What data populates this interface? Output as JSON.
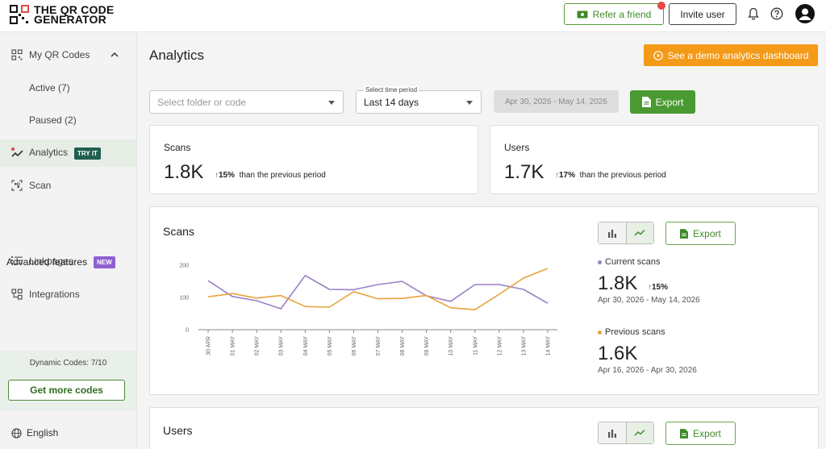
{
  "logo": {
    "line1": "THE QR CODE",
    "line2": "GENERATOR"
  },
  "header": {
    "refer_label": "Refer a friend",
    "invite_label": "Invite user"
  },
  "sidebar": {
    "my_qr_codes": "My QR Codes",
    "active": "Active (7)",
    "paused": "Paused (2)",
    "analytics": "Analytics",
    "analytics_badge": "TRY IT",
    "scan": "Scan",
    "advanced": "Advanced features",
    "advanced_badge": "NEW",
    "linkpages": "Linkpages",
    "integrations": "Integrations",
    "dynamic_codes": "Dynamic Codes: 7/10",
    "get_more": "Get more codes",
    "language": "English"
  },
  "main": {
    "title": "Analytics",
    "demo_button": "See a demo analytics dashboard",
    "folder_placeholder": "Select folder or code",
    "time_period_label": "Select time period",
    "time_period_value": "Last 14 days",
    "date_range": "Apr 30, 2026 - May 14, 2026",
    "export_label": "Export"
  },
  "summary": {
    "scans": {
      "label": "Scans",
      "value": "1.8K",
      "change": "15%",
      "suffix": "than the previous period"
    },
    "users": {
      "label": "Users",
      "value": "1.7K",
      "change": "17%",
      "suffix": "than the previous period"
    }
  },
  "scans_panel": {
    "title": "Scans",
    "export_label": "Export",
    "current": {
      "label": "Current scans",
      "value": "1.8K",
      "change": "15%",
      "dates": "Apr 30, 2026 - May 14, 2026"
    },
    "previous": {
      "label": "Previous scans",
      "value": "1.6K",
      "dates": "Apr 16, 2026 - Apr 30, 2026"
    }
  },
  "users_panel": {
    "title": "Users",
    "export_label": "Export"
  },
  "colors": {
    "current": "#9b7fc7",
    "previous": "#e8a33d",
    "accent": "#4a9a32",
    "demo": "#f39a18"
  },
  "chart_data": {
    "type": "line",
    "x": [
      "30 APR",
      "01 MAY",
      "02 MAY",
      "03 MAY",
      "04 MAY",
      "05 MAY",
      "06 MAY",
      "07 MAY",
      "08 MAY",
      "09 MAY",
      "10 MAY",
      "11 MAY",
      "12 MAY",
      "13 MAY",
      "14 MAY"
    ],
    "yticks": [
      0,
      100,
      200
    ],
    "ylim": [
      0,
      200
    ],
    "series": [
      {
        "name": "Current scans",
        "color": "#9b7fc7",
        "values": [
          152,
          103,
          90,
          65,
          168,
          125,
          124,
          140,
          150,
          105,
          88,
          140,
          140,
          125,
          82
        ]
      },
      {
        "name": "Previous scans",
        "color": "#e8a33d",
        "values": [
          102,
          112,
          98,
          106,
          72,
          70,
          118,
          96,
          97,
          106,
          68,
          62,
          110,
          160,
          190
        ]
      }
    ]
  }
}
